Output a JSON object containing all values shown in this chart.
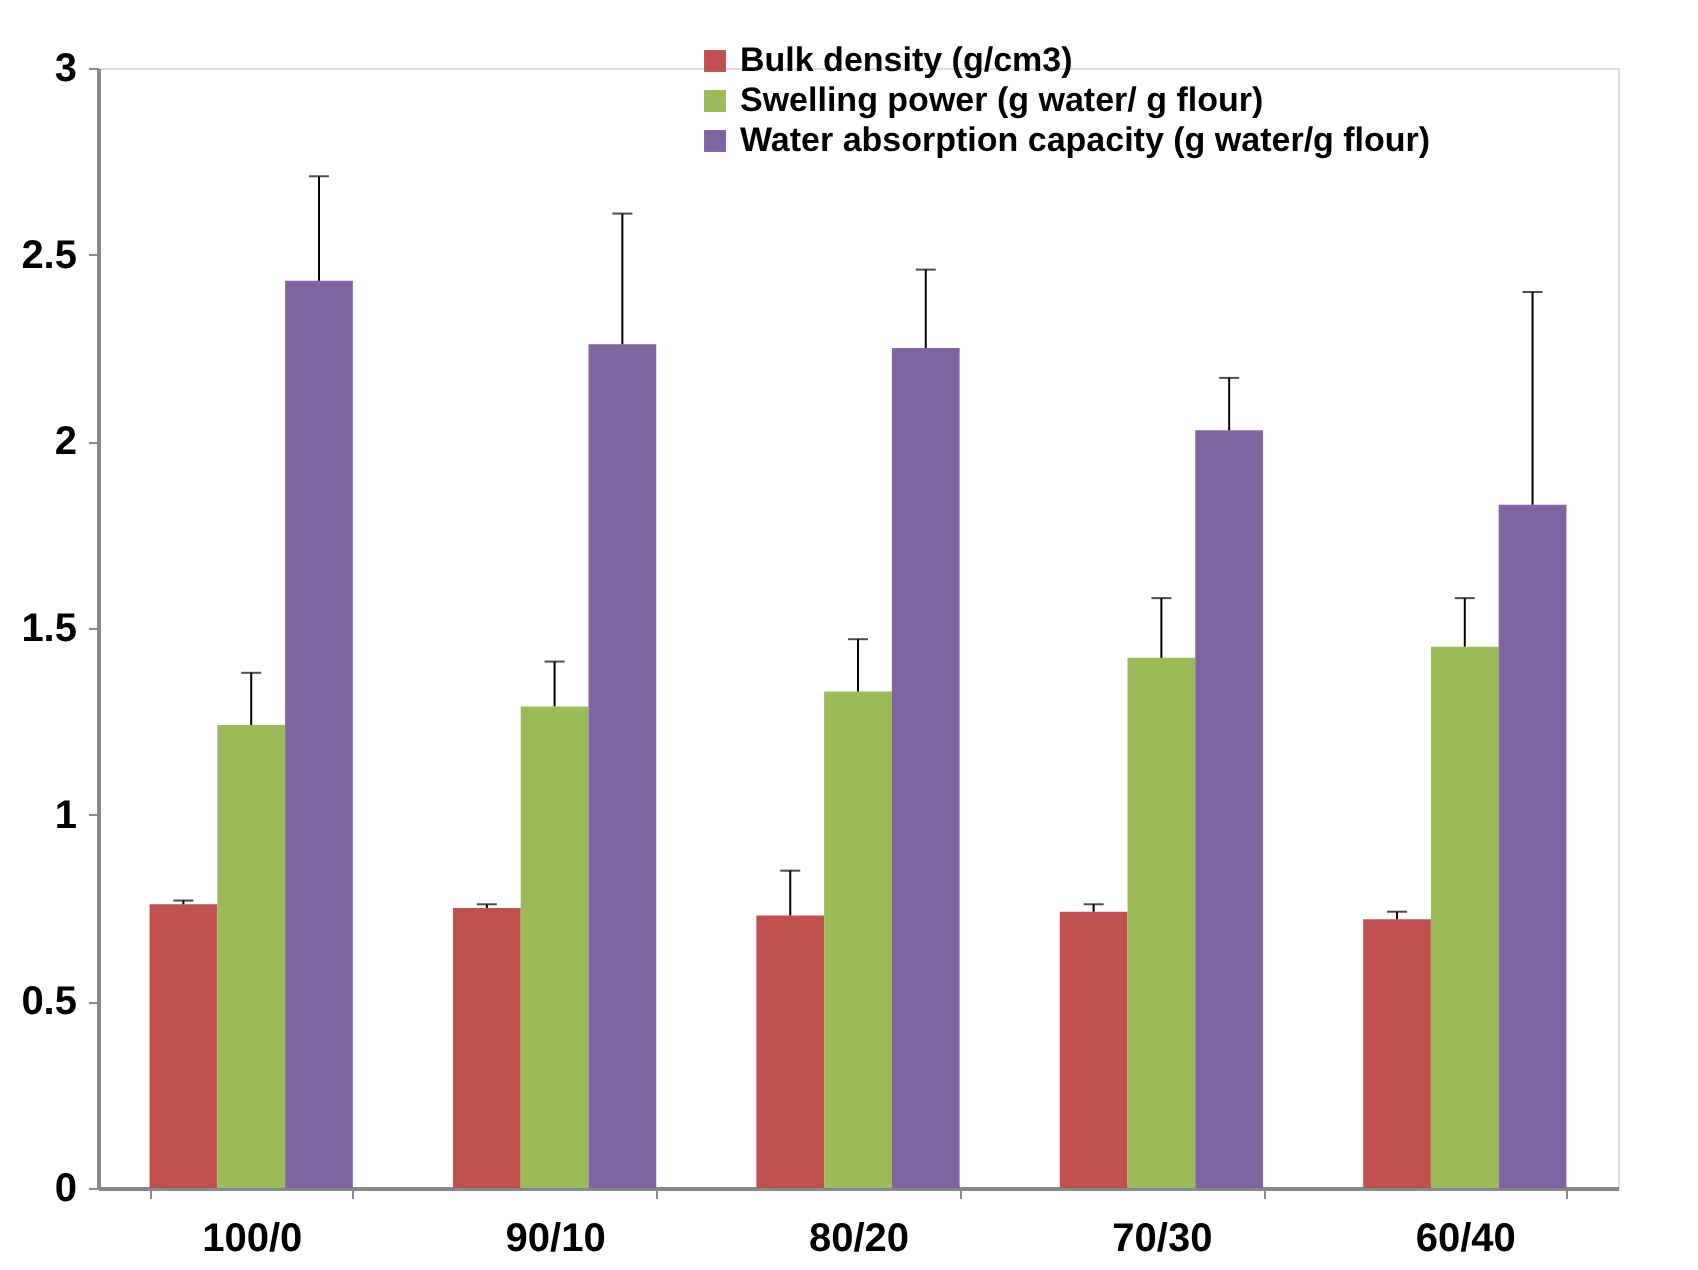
{
  "chart_data": {
    "type": "bar",
    "categories": [
      "100/0",
      "90/10",
      "80/20",
      "70/30",
      "60/40"
    ],
    "series": [
      {
        "name": "Bulk density (g/cm3)",
        "color": "#c0504d",
        "values": [
          0.76,
          0.75,
          0.73,
          0.74,
          0.72
        ],
        "errors": [
          [
            0.76,
            0.77
          ],
          [
            0.75,
            0.76
          ],
          [
            0.73,
            0.85
          ],
          [
            0.74,
            0.76
          ],
          [
            0.72,
            0.74
          ]
        ]
      },
      {
        "name": "Swelling power (g water/ g flour)",
        "color": "#9bbb59",
        "values": [
          1.24,
          1.29,
          1.33,
          1.42,
          1.45
        ],
        "errors": [
          [
            1.24,
            1.38
          ],
          [
            1.29,
            1.41
          ],
          [
            1.33,
            1.47
          ],
          [
            1.42,
            1.58
          ],
          [
            1.45,
            1.58
          ]
        ]
      },
      {
        "name": "Water absorption capacity (g water/g flour)",
        "color": "#8064a2",
        "values": [
          2.43,
          2.26,
          2.25,
          2.03,
          1.83
        ],
        "errors": [
          [
            2.43,
            2.71
          ],
          [
            2.26,
            2.61
          ],
          [
            2.25,
            2.46
          ],
          [
            2.03,
            2.17
          ],
          [
            1.83,
            2.4
          ]
        ]
      }
    ],
    "ylim": [
      0,
      3
    ],
    "yticks": [
      0,
      0.5,
      1,
      1.5,
      2,
      2.5,
      3
    ],
    "grid": false,
    "legend": "top"
  }
}
